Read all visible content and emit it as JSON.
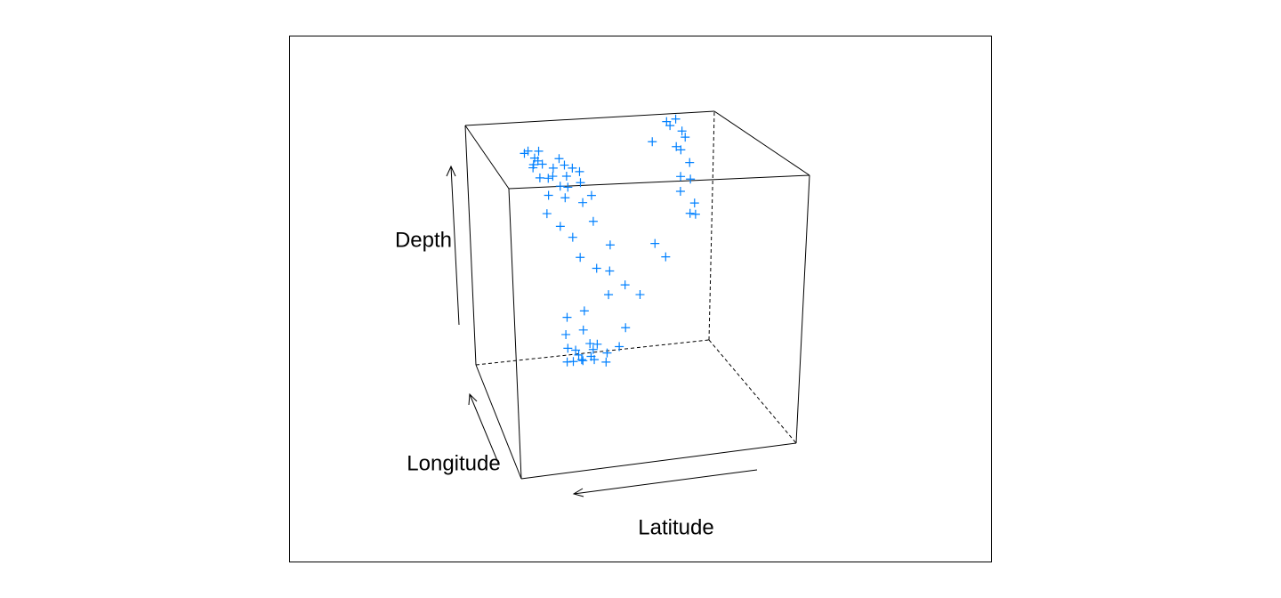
{
  "chart_data": {
    "type": "scatter3d",
    "color": "#0080ff",
    "xlabel": "Latitude",
    "ylabel": "Longitude",
    "zlabel": "Depth",
    "xlim": [
      -38.59,
      -10.72
    ],
    "ylim": [
      165.67,
      188.13
    ],
    "zlim": [
      40,
      680
    ],
    "x": [
      -17.5,
      -18.2,
      -16.8,
      -15.9,
      -17,
      -19,
      -18.6,
      -20,
      -16.2,
      -17.8,
      -19.5,
      -15.5,
      -18,
      -21,
      -16.5,
      -20.5,
      -17.2,
      -19.8,
      -14.8,
      -18.9,
      -21.5,
      -16,
      -22,
      -17.6,
      -20.8,
      -34,
      -33.5,
      -34.5,
      -35,
      -33.8,
      -34.8,
      -35.5,
      -34.2,
      -35.8,
      -34.6,
      -36,
      -33.2,
      -35.2,
      -36.5,
      -31,
      -22,
      -21.5,
      -22.5,
      -23,
      -21,
      -22.8,
      -23.5,
      -20.5,
      -22.2,
      -21.8,
      -24,
      -23.2,
      -20.8,
      -22.6,
      -21.2,
      -24.5,
      -25,
      -26,
      -28,
      -27,
      -20,
      -22,
      -24,
      -19,
      -26,
      -23,
      -28,
      -30,
      -21,
      -25,
      -32,
      -18
    ],
    "y": [
      179.5,
      180.1,
      179,
      178.5,
      181,
      180.5,
      179.2,
      181.2,
      180.3,
      178.8,
      179.8,
      179.6,
      181.5,
      180,
      181.8,
      178.5,
      182,
      181.6,
      178.2,
      178.3,
      181,
      177.5,
      179.5,
      180.8,
      182.2,
      187.5,
      187.8,
      187,
      187.3,
      186.8,
      187.9,
      187.2,
      186.5,
      187.6,
      187.4,
      186.9,
      188,
      186.2,
      187.7,
      186.5,
      185,
      184.5,
      185.5,
      184,
      185.8,
      186,
      185.2,
      184.8,
      183.8,
      186.4,
      185.6,
      183.5,
      185.2,
      184.6,
      186.8,
      186,
      184.5,
      187,
      186.5,
      185.8,
      177,
      178,
      180,
      176,
      181,
      176.5,
      182,
      183,
      175.5,
      183.5,
      185,
      177
    ],
    "z": [
      600,
      620,
      640,
      660,
      590,
      570,
      650,
      560,
      630,
      610,
      600,
      670,
      540,
      580,
      610,
      620,
      650,
      530,
      675,
      640,
      520,
      660,
      550,
      500,
      600,
      670,
      650,
      640,
      620,
      600,
      580,
      550,
      520,
      500,
      470,
      440,
      660,
      420,
      400,
      620,
      80,
      100,
      60,
      120,
      90,
      50,
      70,
      140,
      160,
      45,
      55,
      110,
      180,
      200,
      40,
      90,
      60,
      50,
      120,
      80,
      420,
      380,
      350,
      480,
      300,
      450,
      260,
      380,
      520,
      250,
      320,
      500
    ]
  }
}
